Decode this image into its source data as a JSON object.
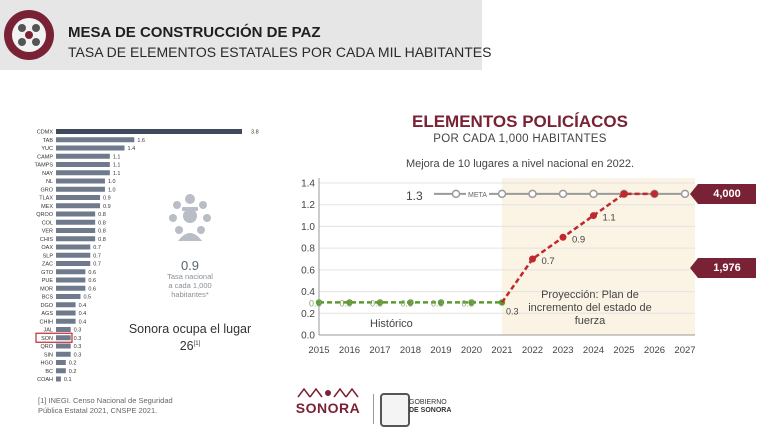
{
  "header": {
    "title": "MESA DE CONSTRUCCIÓN DE PAZ",
    "subtitle": "TASA DE ELEMENTOS ESTATALES POR CADA MIL HABITANTES"
  },
  "left_panel": {
    "stat_value": "0.9",
    "stat_desc_1": "Tasa nacional",
    "stat_desc_2": "a cada 1,000",
    "stat_desc_3": "habitantes*",
    "rank_text": "Sonora ocupa el lugar",
    "rank_number": "26",
    "rank_note": "[1]",
    "footnote_1": "[1] INEGI. Censo Nacional de Seguridad",
    "footnote_2": "Pública Estatal 2021, CNSPE 2021."
  },
  "right_panel": {
    "title": "ELEMENTOS POLICÍACOS",
    "subtitle": "POR CADA 1,000 HABITANTES",
    "note": "Mejora de 10 lugares a nivel nacional en 2022.",
    "historic_label": "Histórico",
    "projection_label_1": "Proyección: Plan de",
    "projection_label_2": "incremento del estado de",
    "projection_label_3": "fuerza",
    "meta_value": "1.3",
    "meta_label": "META",
    "callout_top": "4,000",
    "callout_bottom": "1,976"
  },
  "footer": {
    "sonora": "SONORA",
    "gobierno_1": "GOBIERNO",
    "gobierno_2": "DE SONORA"
  },
  "colors": {
    "maroon": "#7a2235",
    "green": "#5c9a2e",
    "red": "#c0282e",
    "bar": "#6f7a8c",
    "bar_first": "#3f4a5c",
    "projection_bg": "#fbf3e3",
    "meta_line": "#9a9a9a"
  },
  "chart_data": [
    {
      "type": "bar",
      "orientation": "horizontal",
      "title": "",
      "highlight": "SON",
      "categories": [
        "CDMX",
        "TAB",
        "YUC",
        "CAMP",
        "TAMPS",
        "NAY",
        "NL",
        "GRO",
        "TLAX",
        "MEX",
        "QROO",
        "COL",
        "VER",
        "CHIS",
        "OAX",
        "SLP",
        "ZAC",
        "GTO",
        "PUE",
        "MOR",
        "BCS",
        "DGO",
        "AGS",
        "CHIH",
        "JAL",
        "SON",
        "QRO",
        "SIN",
        "HGO",
        "BC",
        "COAH"
      ],
      "values": [
        3.8,
        1.6,
        1.4,
        1.1,
        1.1,
        1.1,
        1.0,
        1.0,
        0.9,
        0.9,
        0.8,
        0.8,
        0.8,
        0.8,
        0.7,
        0.7,
        0.7,
        0.6,
        0.6,
        0.6,
        0.5,
        0.4,
        0.4,
        0.4,
        0.3,
        0.3,
        0.3,
        0.3,
        0.2,
        0.2,
        0.1
      ],
      "value_labels": [
        "3.8",
        "1.6",
        "1.4",
        "1.1",
        "1.1",
        "1.1",
        "1.0",
        "1.0",
        "0.9",
        "0.9",
        "0.8",
        "0.8",
        "0.8",
        "0.8",
        "0.7",
        "0.7",
        "0.7",
        "0.6",
        "0.6",
        "0.6",
        "0.5",
        "0.4",
        "0.4",
        "0.4",
        "0.3",
        "0.3",
        "0.3",
        "0.3",
        "0.2",
        "0.2",
        "0.1"
      ],
      "xlim": [
        0,
        3.8
      ]
    },
    {
      "type": "line",
      "title": "ELEMENTOS POLICÍACOS",
      "x": [
        2015,
        2016,
        2017,
        2018,
        2019,
        2020,
        2021,
        2022,
        2023,
        2024,
        2025,
        2026,
        2027
      ],
      "ylim": [
        0,
        1.4
      ],
      "yticks": [
        0,
        0.2,
        0.4,
        0.6,
        0.8,
        1.0,
        1.2,
        1.4
      ],
      "ytick_labels": [
        "0.0",
        "0.2",
        "0.4",
        "0.6",
        "0.8",
        "1.0",
        "1.2",
        "1.4"
      ],
      "xtick_labels": [
        "2015",
        "2016",
        "2017",
        "2018",
        "2019",
        "2020",
        "2021",
        "2022",
        "2023",
        "2024",
        "2025",
        "2026",
        "2027"
      ],
      "projection_start": 2021,
      "series": [
        {
          "name": "Histórico",
          "x": [
            2015,
            2016,
            2017,
            2018,
            2019,
            2020,
            2021
          ],
          "values": [
            0.3,
            0.3,
            0.3,
            0.3,
            0.3,
            0.3,
            0.3
          ],
          "labels": [
            "0.3",
            "0.3",
            "0.3",
            "0.3",
            "0.3",
            "0.3",
            "0.3"
          ]
        },
        {
          "name": "Proyección",
          "x": [
            2021,
            2022,
            2023,
            2024,
            2025,
            2026
          ],
          "values": [
            0.3,
            0.7,
            0.9,
            1.1,
            1.3,
            1.3
          ],
          "labels": [
            "",
            "0.7",
            "0.9",
            "1.1",
            "",
            ""
          ]
        },
        {
          "name": "META",
          "x": [
            2021,
            2022,
            2023,
            2024,
            2025,
            2026,
            2027
          ],
          "values": [
            1.3,
            1.3,
            1.3,
            1.3,
            1.3,
            1.3,
            1.3
          ]
        }
      ]
    }
  ]
}
